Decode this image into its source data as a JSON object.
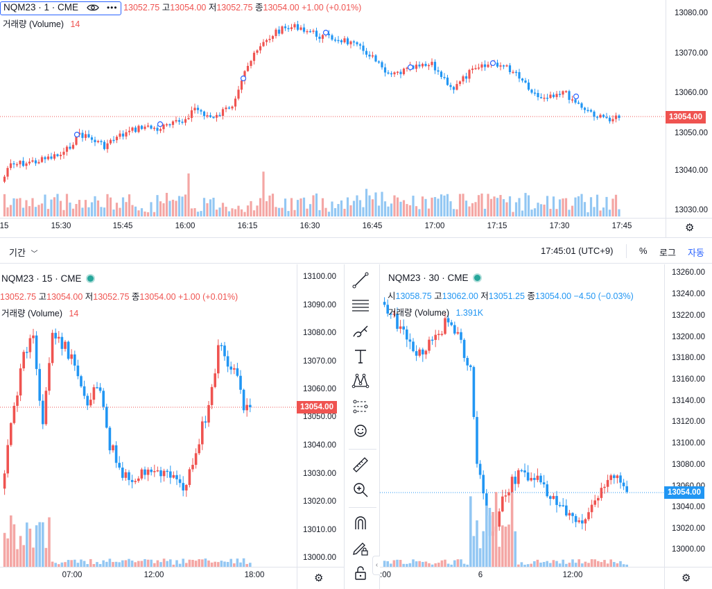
{
  "top": {
    "symbol": "NQM23 · 1 · CME",
    "ohlc": [
      {
        "label": "",
        "value": "13052.75"
      },
      {
        "label": "고",
        "value": "13054.00"
      },
      {
        "label": "저",
        "value": "13052.75"
      },
      {
        "label": "종",
        "value": "13054.00"
      }
    ],
    "change": "+1.00 (+0.01%)",
    "volume_label": "거래량 (Volume)",
    "volume_value": "14",
    "price_ticks": [
      "13080.00",
      "13070.00",
      "13060.00",
      "13050.00",
      "13040.00",
      "13030.00"
    ],
    "last_price": "13054.00",
    "time_ticks": [
      "15",
      "15:30",
      "15:45",
      "16:00",
      "16:15",
      "16:30",
      "16:45",
      "17:00",
      "17:15",
      "17:30",
      "17:45"
    ]
  },
  "bottom_bar": {
    "range_label": "기간",
    "clock": "17:45:01 (UTC+9)",
    "percent": "%",
    "log": "로그",
    "auto": "자동"
  },
  "left": {
    "symbol": "NQM23 · 15 · CME",
    "ohlc": [
      {
        "label": "",
        "value": "13052.75"
      },
      {
        "label": "고",
        "value": "13054.00"
      },
      {
        "label": "저",
        "value": "13052.75"
      },
      {
        "label": "종",
        "value": "13054.00"
      }
    ],
    "change": "+1.00 (+0.01%)",
    "volume_label": "거래량 (Volume)",
    "volume_value": "14",
    "price_ticks": [
      "13100.00",
      "13090.00",
      "13080.00",
      "13070.00",
      "13060.00",
      "13050.00",
      "13040.00",
      "13030.00",
      "13020.00",
      "13010.00",
      "13000.00"
    ],
    "last_price": "13054.00",
    "time_ticks": [
      "07:00",
      "12:00",
      "18:00"
    ]
  },
  "right": {
    "symbol": "NQM23 · 30 · CME",
    "ohlc": [
      {
        "label": "시",
        "value": "13058.75"
      },
      {
        "label": "고",
        "value": "13062.00"
      },
      {
        "label": "저",
        "value": "13051.25"
      },
      {
        "label": "종",
        "value": "13054.00"
      }
    ],
    "change": "−4.50 (−0.03%)",
    "volume_label": "거래량 (Volume)",
    "volume_value": "1.391K",
    "price_ticks": [
      "13260.00",
      "13240.00",
      "13220.00",
      "13200.00",
      "13180.00",
      "13160.00",
      "13140.00",
      "13120.00",
      "13100.00",
      "13080.00",
      "13060.00",
      "13040.00",
      "13020.00",
      "13000.00"
    ],
    "last_price": "13054.00",
    "time_ticks": [
      ":00",
      "6",
      "12:00"
    ]
  },
  "tools": [
    "trend-line-icon",
    "horizontal-lines-icon",
    "brush-icon",
    "text-icon",
    "pattern-icon",
    "prediction-icon",
    "emoji-icon",
    "ruler-icon",
    "zoom-in-icon",
    "magnet-icon",
    "lock-drawing-icon",
    "lock-icon"
  ],
  "colors": {
    "up": "#ef5350",
    "down": "#2196f3",
    "up_vol": "#f4a6a4",
    "down_vol": "#93c7f3",
    "border": "#e0e3eb"
  }
}
